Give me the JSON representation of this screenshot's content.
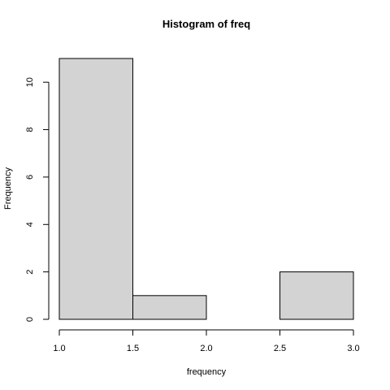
{
  "chart_data": {
    "type": "bar",
    "title": "Histogram of freq",
    "xlabel": "frequency",
    "ylabel": "Frequency",
    "bins": [
      {
        "start": 1.0,
        "end": 1.5,
        "count": 11
      },
      {
        "start": 1.5,
        "end": 2.0,
        "count": 1
      },
      {
        "start": 2.0,
        "end": 2.5,
        "count": 0
      },
      {
        "start": 2.5,
        "end": 3.0,
        "count": 2
      }
    ],
    "xlim": [
      1.0,
      3.0
    ],
    "ylim": [
      0,
      11
    ],
    "x_ticks": [
      {
        "value": 1.0,
        "label": "1.0"
      },
      {
        "value": 1.5,
        "label": "1.5"
      },
      {
        "value": 2.0,
        "label": "2.0"
      },
      {
        "value": 2.5,
        "label": "2.5"
      },
      {
        "value": 3.0,
        "label": "3.0"
      }
    ],
    "y_ticks": [
      {
        "value": 0,
        "label": "0"
      },
      {
        "value": 2,
        "label": "2"
      },
      {
        "value": 4,
        "label": "4"
      },
      {
        "value": 6,
        "label": "6"
      },
      {
        "value": 8,
        "label": "8"
      },
      {
        "value": 10,
        "label": "10"
      }
    ],
    "grid": false,
    "colors": {
      "bar_fill": "#d3d3d3",
      "bar_stroke": "#000000"
    }
  }
}
